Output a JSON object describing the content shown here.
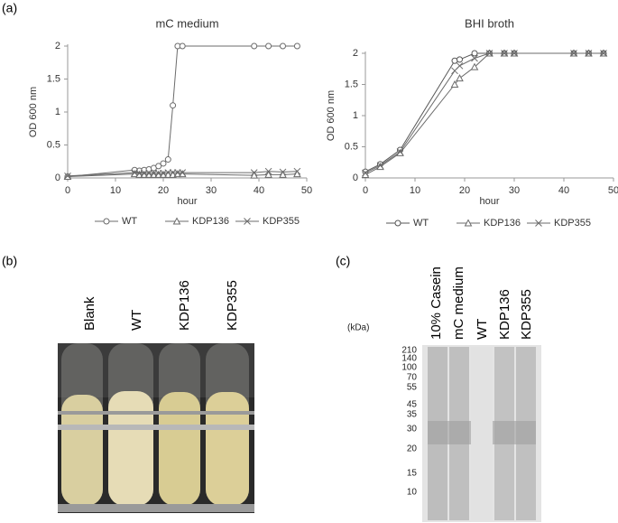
{
  "chart_data": [
    {
      "type": "line",
      "title": "mC medium",
      "x_label": "hour",
      "y_label": "OD 600 nm",
      "x": [
        0,
        14,
        15,
        16,
        17,
        18,
        19,
        20,
        21,
        22,
        23,
        24,
        39,
        42,
        45,
        48
      ],
      "series": [
        {
          "name": "WT",
          "color": "#6b6b6b",
          "marker": "circle",
          "values": [
            0.02,
            0.12,
            0.11,
            0.12,
            0.13,
            0.15,
            0.18,
            0.22,
            0.28,
            1.1,
            2,
            2,
            2,
            2,
            2,
            2
          ]
        },
        {
          "name": "KDP136",
          "color": "#6b6b6b",
          "marker": "triangle",
          "values": [
            0.02,
            0.06,
            0.05,
            0.05,
            0.05,
            0.05,
            0.05,
            0.05,
            0.05,
            0.05,
            0.06,
            0.06,
            0.04,
            0.05,
            0.05,
            0.06
          ]
        },
        {
          "name": "KDP355",
          "color": "#6b6b6b",
          "marker": "cross",
          "values": [
            0.03,
            0.08,
            0.07,
            0.07,
            0.07,
            0.07,
            0.07,
            0.07,
            0.08,
            0.08,
            0.08,
            0.08,
            0.08,
            0.1,
            0.09,
            0.1
          ]
        }
      ],
      "xlim": [
        0,
        50
      ],
      "xticks": [
        0,
        10,
        20,
        30,
        40,
        50
      ],
      "ylim": [
        0,
        2
      ],
      "yticks": [
        0,
        0.5,
        1,
        1.5,
        2
      ],
      "legend": "bottom"
    },
    {
      "type": "line",
      "title": "BHI broth",
      "x_label": "hour",
      "y_label": "OD 600 nm",
      "x": [
        0,
        3,
        7,
        18,
        19,
        22,
        25,
        28,
        30,
        42,
        45,
        48
      ],
      "series": [
        {
          "name": "WT",
          "color": "#555555",
          "marker": "circle",
          "values": [
            0.1,
            0.22,
            0.45,
            1.88,
            1.9,
            2,
            2,
            2,
            2,
            2,
            2,
            2
          ]
        },
        {
          "name": "KDP136",
          "color": "#6b6b6b",
          "marker": "triangle",
          "values": [
            0.05,
            0.18,
            0.4,
            1.5,
            1.6,
            1.78,
            2,
            2,
            2,
            2,
            2,
            2
          ]
        },
        {
          "name": "KDP355",
          "color": "#6b6b6b",
          "marker": "cross",
          "values": [
            0.08,
            0.2,
            0.42,
            1.72,
            1.8,
            1.92,
            2,
            2,
            2,
            2,
            2,
            2
          ]
        }
      ],
      "xlim": [
        0,
        50
      ],
      "xticks": [
        0,
        10,
        20,
        30,
        40,
        50
      ],
      "ylim": [
        0,
        2
      ],
      "yticks": [
        0,
        0.5,
        1,
        1.5,
        2
      ],
      "legend": "bottom"
    }
  ],
  "panels": {
    "a": "(a)",
    "b": "(b)",
    "c": "(c)"
  },
  "tubes": [
    "Blank",
    "WT",
    "KDP136",
    "KDP355"
  ],
  "gel": {
    "unit": "(kDa)",
    "lanes": [
      "10% Casein",
      "mC medium",
      "WT",
      "KDP136",
      "KDP355"
    ],
    "markers": [
      "210",
      "140",
      "100",
      "70",
      "55",
      "45",
      "35",
      "30",
      "20",
      "15",
      "10"
    ]
  }
}
